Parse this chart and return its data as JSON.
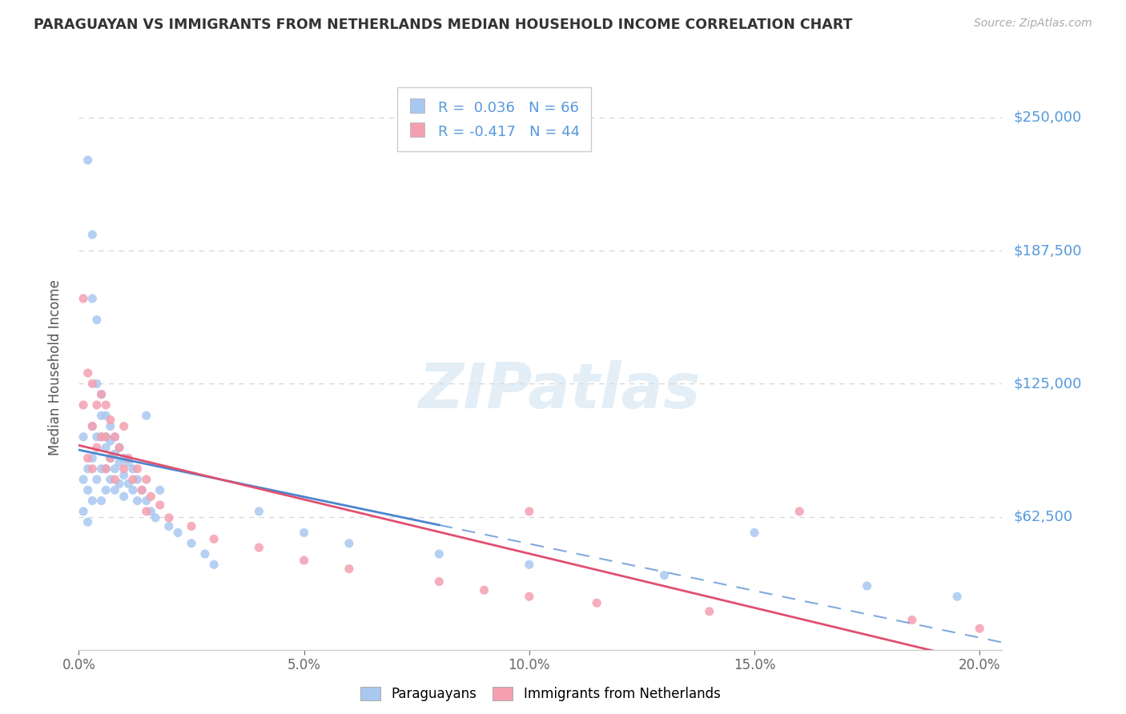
{
  "title": "PARAGUAYAN VS IMMIGRANTS FROM NETHERLANDS MEDIAN HOUSEHOLD INCOME CORRELATION CHART",
  "source": "Source: ZipAtlas.com",
  "ylabel": "Median Household Income",
  "xlim": [
    0.0,
    0.205
  ],
  "ylim": [
    0,
    265000
  ],
  "yticks": [
    0,
    62500,
    125000,
    187500,
    250000
  ],
  "ytick_labels": [
    "",
    "$62,500",
    "$125,000",
    "$187,500",
    "$250,000"
  ],
  "xticks": [
    0.0,
    0.05,
    0.1,
    0.15,
    0.2
  ],
  "xtick_labels": [
    "0.0%",
    "5.0%",
    "10.0%",
    "15.0%",
    "20.0%"
  ],
  "series1_color": "#a8c8f0",
  "series2_color": "#f4a0b0",
  "trendline1_color": "#4a86d0",
  "trendline2_color": "#e05070",
  "gridline_color": "#cccccc",
  "median_line_color": "#a0b8d0",
  "legend_r1_text": "R =  0.036",
  "legend_r2_text": "R = -0.417",
  "legend_n1_text": "N = 66",
  "legend_n2_text": "N = 44",
  "legend_label1": "Paraguayans",
  "legend_label2": "Immigrants from Netherlands",
  "watermark": "ZIPatlas",
  "title_color": "#333333",
  "source_color": "#aaaaaa",
  "ytick_color": "#5599dd",
  "xtick_color": "#666666",
  "paraguayan_x": [
    0.001,
    0.001,
    0.001,
    0.002,
    0.002,
    0.002,
    0.002,
    0.003,
    0.003,
    0.003,
    0.003,
    0.003,
    0.004,
    0.004,
    0.004,
    0.004,
    0.005,
    0.005,
    0.005,
    0.005,
    0.005,
    0.006,
    0.006,
    0.006,
    0.006,
    0.006,
    0.007,
    0.007,
    0.007,
    0.007,
    0.008,
    0.008,
    0.008,
    0.008,
    0.009,
    0.009,
    0.009,
    0.01,
    0.01,
    0.01,
    0.011,
    0.011,
    0.012,
    0.012,
    0.013,
    0.013,
    0.014,
    0.015,
    0.015,
    0.016,
    0.017,
    0.018,
    0.02,
    0.022,
    0.025,
    0.028,
    0.03,
    0.04,
    0.05,
    0.06,
    0.08,
    0.1,
    0.13,
    0.15,
    0.175,
    0.195
  ],
  "paraguayan_y": [
    100000,
    80000,
    65000,
    230000,
    85000,
    75000,
    60000,
    195000,
    165000,
    105000,
    90000,
    70000,
    155000,
    125000,
    100000,
    80000,
    120000,
    110000,
    100000,
    85000,
    70000,
    110000,
    100000,
    95000,
    85000,
    75000,
    105000,
    98000,
    90000,
    80000,
    100000,
    92000,
    85000,
    75000,
    95000,
    88000,
    78000,
    90000,
    82000,
    72000,
    88000,
    78000,
    85000,
    75000,
    80000,
    70000,
    75000,
    110000,
    70000,
    65000,
    62000,
    75000,
    58000,
    55000,
    50000,
    45000,
    40000,
    65000,
    55000,
    50000,
    45000,
    40000,
    35000,
    55000,
    30000,
    25000
  ],
  "netherlands_x": [
    0.001,
    0.001,
    0.002,
    0.002,
    0.003,
    0.003,
    0.003,
    0.004,
    0.004,
    0.005,
    0.005,
    0.006,
    0.006,
    0.006,
    0.007,
    0.007,
    0.008,
    0.008,
    0.009,
    0.01,
    0.01,
    0.011,
    0.012,
    0.013,
    0.014,
    0.015,
    0.015,
    0.016,
    0.018,
    0.02,
    0.025,
    0.03,
    0.04,
    0.05,
    0.06,
    0.08,
    0.09,
    0.1,
    0.1,
    0.115,
    0.14,
    0.16,
    0.185,
    0.2
  ],
  "netherlands_y": [
    165000,
    115000,
    130000,
    90000,
    125000,
    105000,
    85000,
    115000,
    95000,
    120000,
    100000,
    115000,
    100000,
    85000,
    108000,
    90000,
    100000,
    80000,
    95000,
    105000,
    85000,
    90000,
    80000,
    85000,
    75000,
    80000,
    65000,
    72000,
    68000,
    62000,
    58000,
    52000,
    48000,
    42000,
    38000,
    32000,
    28000,
    25000,
    65000,
    22000,
    18000,
    65000,
    14000,
    10000
  ]
}
